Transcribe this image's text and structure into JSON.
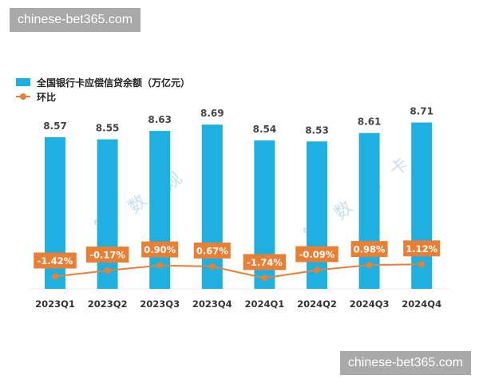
{
  "watermarks": {
    "top": "chinese-bet365.com",
    "bottom": "chinese-bet365.com",
    "chart_overlay": [
      "银",
      "数",
      "观",
      "卡"
    ]
  },
  "chart_data": {
    "type": "bar+line",
    "title": "",
    "categories": [
      "2023Q1",
      "2023Q2",
      "2023Q3",
      "2023Q4",
      "2024Q1",
      "2024Q2",
      "2024Q3",
      "2024Q4"
    ],
    "series": [
      {
        "name": "全国银行卡应偿信贷余额（万亿元）",
        "type": "bar",
        "color": "#1eb0e0",
        "values": [
          8.57,
          8.55,
          8.63,
          8.69,
          8.54,
          8.53,
          8.61,
          8.71
        ],
        "labels": [
          "8.57",
          "8.55",
          "8.63",
          "8.69",
          "8.54",
          "8.53",
          "8.61",
          "8.71"
        ]
      },
      {
        "name": "环比",
        "type": "line",
        "color": "#e97f35",
        "values": [
          -1.42,
          -0.17,
          0.9,
          0.67,
          -1.74,
          -0.09,
          0.98,
          1.12
        ],
        "labels": [
          "-1.42%",
          "-0.17%",
          "0.90%",
          "0.67%",
          "-1.74%",
          "-0.09%",
          "0.98%",
          "1.12%"
        ]
      }
    ],
    "xlabel": "",
    "ylabel": "",
    "ylim": [
      7.13,
      8.75
    ],
    "legend": "top-left",
    "grid": false
  }
}
